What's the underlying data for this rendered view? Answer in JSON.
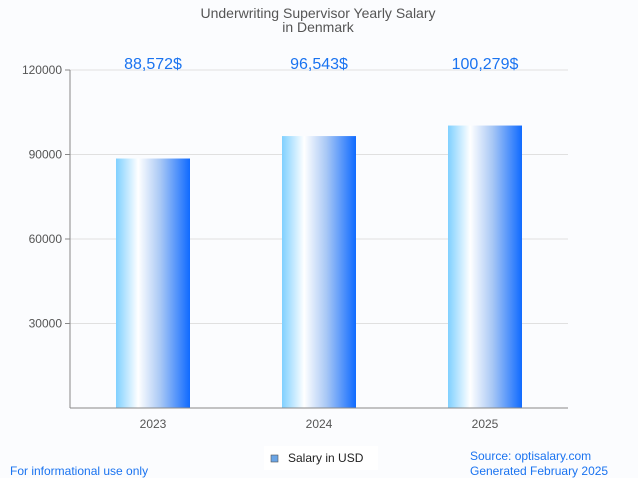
{
  "chart_data": {
    "type": "bar",
    "title_lines": [
      "Underwriting Supervisor Yearly Salary",
      "in Denmark"
    ],
    "categories": [
      "2023",
      "2024",
      "2025"
    ],
    "values": [
      88572,
      96543,
      100279
    ],
    "data_labels": [
      "88,572$",
      "96,543$",
      "100,279$"
    ],
    "ylim": [
      0,
      120000
    ],
    "yticks": [
      30000,
      60000,
      90000,
      120000
    ],
    "ytick_labels": [
      "30000",
      "60000",
      "90000",
      "120000"
    ],
    "xlabel": "",
    "ylabel": "",
    "grid": true,
    "legend": {
      "label": "Salary in USD",
      "placement": "bottom-center",
      "color": "#6aa5e6"
    },
    "series": [
      {
        "name": "Salary in USD",
        "values": [
          88572,
          96543,
          100279
        ]
      }
    ]
  },
  "footer": {
    "left": "For informational use only",
    "source": "Source: optisalary.com",
    "generated": "Generated February 2025"
  },
  "colors": {
    "accent": "#1a73f0",
    "text": "#555555",
    "grid": "#e0e0e0"
  }
}
